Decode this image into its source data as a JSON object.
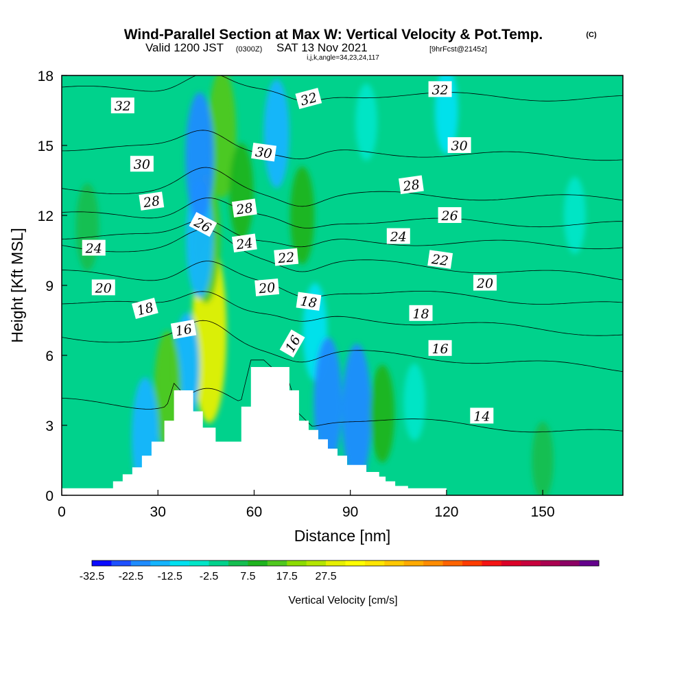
{
  "title": {
    "main": "Wind-Parallel Section at Max W: Vertical Velocity & Pot.Temp.",
    "copyright": "(C)",
    "valid_prefix": "Valid 1200 JST",
    "valid_utc": "(0300Z)",
    "valid_date": "SAT 13 Nov 2021",
    "forecast": "[9hrFcst@2145z]",
    "indices": "i,j,k,angle=34,23,24,117"
  },
  "chart_data": {
    "type": "heatmap",
    "xlabel": "Distance [nm]",
    "ylabel": "Height [Kft MSL]",
    "xlim": [
      0,
      175
    ],
    "ylim": [
      0,
      18
    ],
    "x_ticks": [
      "0",
      "30",
      "60",
      "90",
      "120",
      "150"
    ],
    "x_tick_values": [
      0,
      30,
      60,
      90,
      120,
      150
    ],
    "y_ticks": [
      "0",
      "3",
      "6",
      "9",
      "12",
      "15",
      "18"
    ],
    "y_tick_values": [
      0,
      3,
      6,
      9,
      12,
      15,
      18
    ],
    "background_value": -2.5,
    "vertical_velocity_features": [
      {
        "x": 46,
        "y": 7.0,
        "value": 27.5
      },
      {
        "x": 45,
        "y": 11.0,
        "value": 15
      },
      {
        "x": 50,
        "y": 15.5,
        "value": 15
      },
      {
        "x": 43,
        "y": 11.0,
        "value": -17.5
      },
      {
        "x": 43,
        "y": 14.5,
        "value": -20
      },
      {
        "x": 39,
        "y": 5.5,
        "value": -15
      },
      {
        "x": 56,
        "y": 13.0,
        "value": 7.5
      },
      {
        "x": 67,
        "y": 15.5,
        "value": -15
      },
      {
        "x": 75,
        "y": 12.0,
        "value": 7.5
      },
      {
        "x": 79,
        "y": 7.0,
        "value": -12.5
      },
      {
        "x": 33,
        "y": 4.5,
        "value": 12.5
      },
      {
        "x": 26,
        "y": 2.5,
        "value": -17.5
      },
      {
        "x": 83,
        "y": 4.0,
        "value": -20
      },
      {
        "x": 92,
        "y": 3.5,
        "value": -22.5
      },
      {
        "x": 100,
        "y": 3.5,
        "value": 7.5
      },
      {
        "x": 110,
        "y": 4.0,
        "value": -7.5
      },
      {
        "x": 8,
        "y": 11.5,
        "value": 5
      },
      {
        "x": 95,
        "y": 16.0,
        "value": -7.5
      },
      {
        "x": 120,
        "y": 16.5,
        "value": -10
      },
      {
        "x": 160,
        "y": 12.0,
        "value": -7.5
      },
      {
        "x": 150,
        "y": 1.5,
        "value": 2.5
      }
    ],
    "terrain_profile": {
      "x": [
        0,
        16,
        19,
        22,
        25,
        28,
        32,
        35,
        41,
        44,
        48,
        51,
        56,
        59,
        63,
        71,
        74,
        77,
        80,
        83,
        86,
        89,
        95,
        99,
        101,
        104,
        108,
        113,
        117,
        120
      ],
      "height": [
        0.3,
        0.6,
        0.9,
        1.2,
        1.7,
        2.3,
        3.2,
        4.5,
        3.6,
        2.9,
        2.3,
        2.3,
        3.8,
        5.5,
        5.5,
        4.5,
        3.2,
        2.8,
        2.4,
        2.0,
        1.7,
        1.3,
        1.0,
        0.8,
        0.6,
        0.4,
        0.3,
        0.3,
        0.3,
        0.3
      ]
    },
    "potential_temperature_contours": [
      {
        "value": 14,
        "base_height": 3.3
      },
      {
        "value": 16,
        "base_height": 6.1
      },
      {
        "value": 18,
        "base_height": 7.6
      },
      {
        "value": 20,
        "base_height": 8.8
      },
      {
        "value": 22,
        "base_height": 10.0
      },
      {
        "value": 24,
        "base_height": 10.9
      },
      {
        "value": 26,
        "base_height": 11.8
      },
      {
        "value": 28,
        "base_height": 12.9
      },
      {
        "value": 30,
        "base_height": 14.7
      },
      {
        "value": 32,
        "base_height": 17.2
      }
    ],
    "contour_labels": [
      {
        "text": "32",
        "x": 19,
        "y": 16.7,
        "angle": 0
      },
      {
        "text": "32",
        "x": 77,
        "y": 17.0,
        "angle": -15
      },
      {
        "text": "32",
        "x": 118,
        "y": 17.4,
        "angle": 0
      },
      {
        "text": "30",
        "x": 25,
        "y": 14.2,
        "angle": 0
      },
      {
        "text": "30",
        "x": 63,
        "y": 14.7,
        "angle": 8
      },
      {
        "text": "30",
        "x": 124,
        "y": 15.0,
        "angle": 0
      },
      {
        "text": "28",
        "x": 28,
        "y": 12.6,
        "angle": -8
      },
      {
        "text": "28",
        "x": 57,
        "y": 12.3,
        "angle": -8
      },
      {
        "text": "28",
        "x": 109,
        "y": 13.3,
        "angle": -8
      },
      {
        "text": "26",
        "x": 44,
        "y": 11.6,
        "angle": 28
      },
      {
        "text": "26",
        "x": 121,
        "y": 12.0,
        "angle": 0
      },
      {
        "text": "24",
        "x": 10,
        "y": 10.6,
        "angle": 0
      },
      {
        "text": "24",
        "x": 57,
        "y": 10.8,
        "angle": -8
      },
      {
        "text": "24",
        "x": 105,
        "y": 11.1,
        "angle": 0
      },
      {
        "text": "22",
        "x": 70,
        "y": 10.2,
        "angle": -5
      },
      {
        "text": "22",
        "x": 118,
        "y": 10.1,
        "angle": 8
      },
      {
        "text": "20",
        "x": 13,
        "y": 8.9,
        "angle": 0
      },
      {
        "text": "20",
        "x": 64,
        "y": 8.9,
        "angle": -5
      },
      {
        "text": "20",
        "x": 132,
        "y": 9.1,
        "angle": 0
      },
      {
        "text": "18",
        "x": 26,
        "y": 8.0,
        "angle": -15
      },
      {
        "text": "18",
        "x": 77,
        "y": 8.3,
        "angle": 8
      },
      {
        "text": "18",
        "x": 112,
        "y": 7.8,
        "angle": 0
      },
      {
        "text": "16",
        "x": 38,
        "y": 7.1,
        "angle": -10
      },
      {
        "text": "16",
        "x": 72,
        "y": 6.5,
        "angle": -60
      },
      {
        "text": "16",
        "x": 118,
        "y": 6.3,
        "angle": 0
      },
      {
        "text": "14",
        "x": 131,
        "y": 3.4,
        "angle": 0
      }
    ],
    "colorbar": {
      "title": "Vertical Velocity [cm/s]",
      "levels_min": -32.5,
      "levels_step": 5,
      "tick_labels": [
        "-32.5",
        "-22.5",
        "-12.5",
        "-2.5",
        "7.5",
        "17.5",
        "27.5"
      ],
      "tick_values": [
        -32.5,
        -22.5,
        -12.5,
        -2.5,
        7.5,
        17.5,
        27.5
      ],
      "colors": [
        "#0a0aff",
        "#1e50ff",
        "#1e8cff",
        "#14b4ff",
        "#00e1f0",
        "#00e6c8",
        "#00d28c",
        "#14be50",
        "#1eb41e",
        "#50c81e",
        "#8cdc00",
        "#b4e600",
        "#e6f000",
        "#ffff00",
        "#ffe600",
        "#ffc800",
        "#ffaa00",
        "#ff8c00",
        "#ff6400",
        "#ff3c00",
        "#f51414",
        "#dc0028",
        "#c8003c",
        "#aa0050",
        "#8c0064",
        "#64008c"
      ]
    }
  }
}
